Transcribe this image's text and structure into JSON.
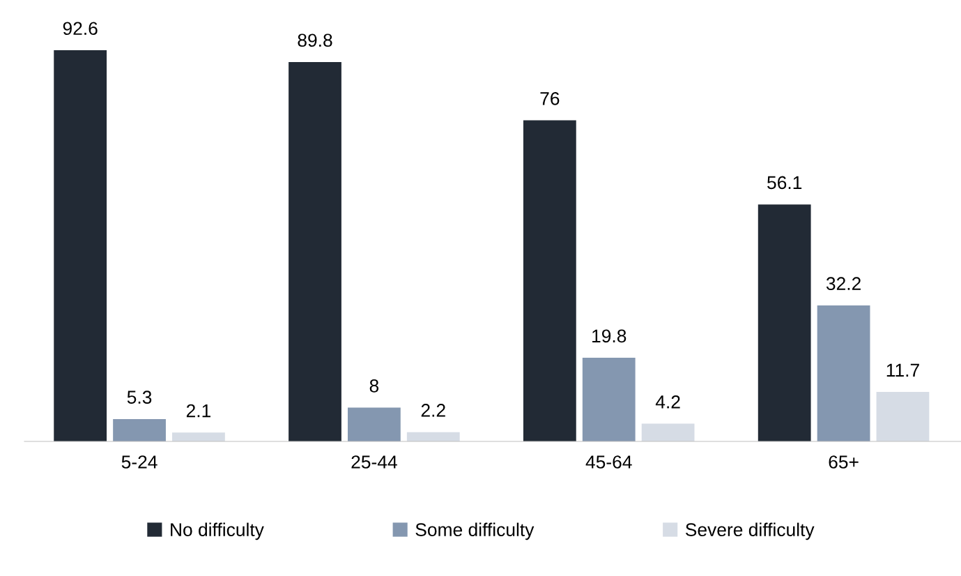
{
  "chart_data": {
    "type": "bar",
    "categories": [
      "5-24",
      "25-44",
      "45-64",
      "65+"
    ],
    "series": [
      {
        "name": "No difficulty",
        "color": "#222a35",
        "values": [
          92.6,
          89.8,
          76,
          56.1
        ]
      },
      {
        "name": "Some difficulty",
        "color": "#8497b0",
        "values": [
          5.3,
          8,
          19.8,
          32.2
        ]
      },
      {
        "name": "Severe difficulty",
        "color": "#d6dce5",
        "values": [
          2.1,
          2.2,
          4.2,
          11.7
        ]
      }
    ],
    "data_labels": true,
    "grid": false,
    "legend": "bottom"
  }
}
